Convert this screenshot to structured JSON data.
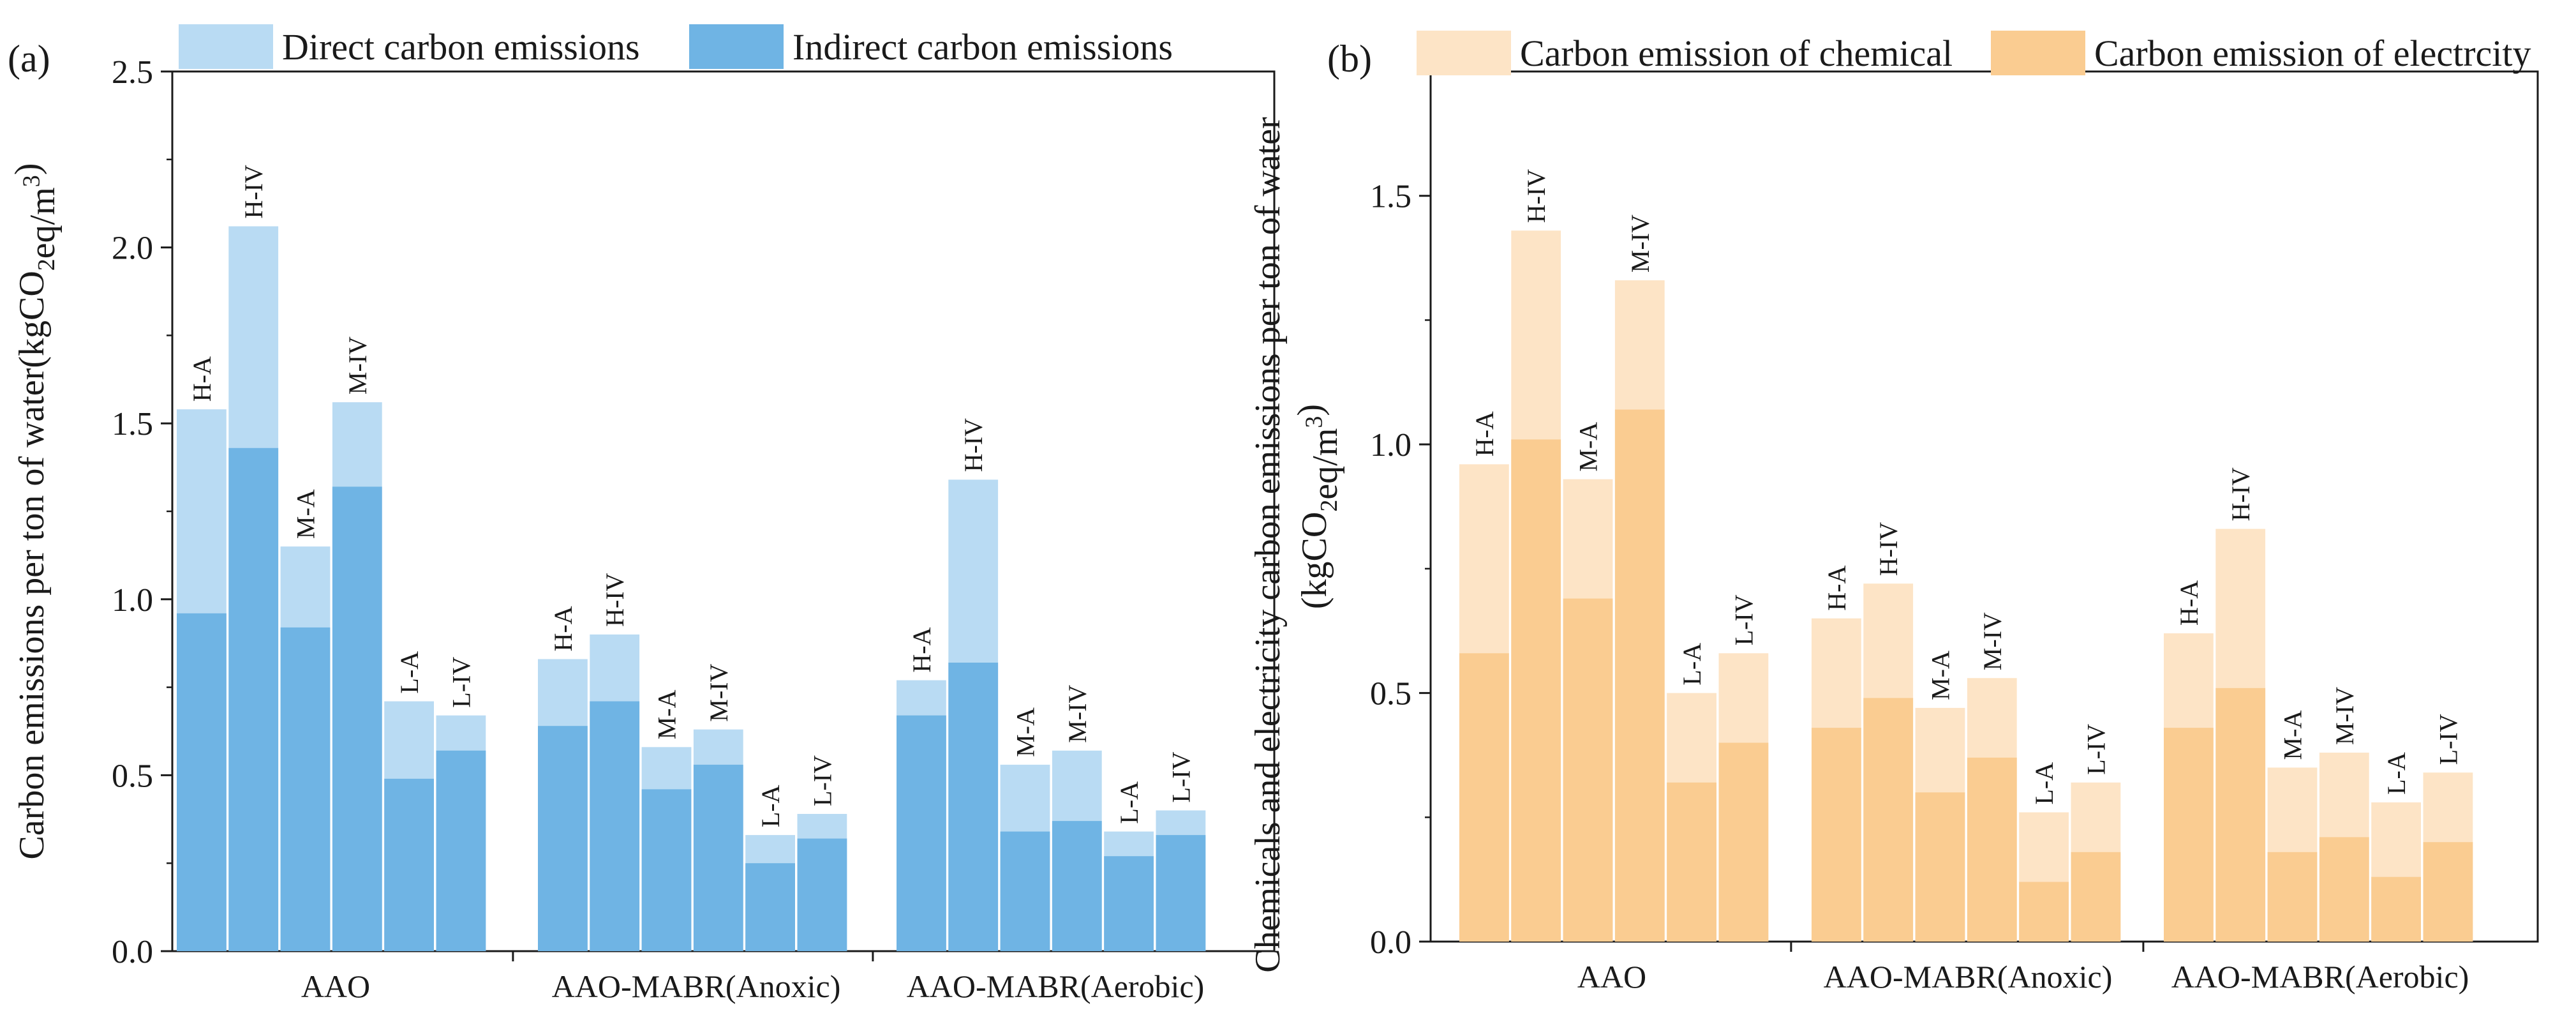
{
  "chart_data": [
    {
      "type": "bar",
      "stacked": "overlay",
      "panel_label": "(a)",
      "ylabel": "Carbon emissions per ton of water(kgCO2eq/m3)",
      "ylim": [
        0,
        2.5
      ],
      "yticks": [
        "0.0",
        "0.5",
        "1.0",
        "1.5",
        "2.0",
        "2.5"
      ],
      "groups": [
        "AAO",
        "AAO-MABR(Anoxic)",
        "AAO-MABR(Aerobic)"
      ],
      "categories": [
        "H-A",
        "H-IV",
        "M-A",
        "M-IV",
        "L-A",
        "L-IV"
      ],
      "legend": {
        "placement": "top",
        "entries": [
          "Direct carbon emissions",
          "Indirect carbon emissions"
        ]
      },
      "series": [
        {
          "name": "Direct carbon emissions",
          "color": "#b9dbf3",
          "values": [
            [
              1.54,
              2.06,
              1.15,
              1.56,
              0.71,
              0.67
            ],
            [
              0.83,
              0.9,
              0.58,
              0.63,
              0.33,
              0.39
            ],
            [
              0.77,
              1.34,
              0.53,
              0.57,
              0.34,
              0.4
            ]
          ]
        },
        {
          "name": "Indirect carbon emissions",
          "color": "#6fb4e4",
          "values": [
            [
              0.96,
              1.43,
              0.92,
              1.32,
              0.49,
              0.57
            ],
            [
              0.64,
              0.71,
              0.46,
              0.53,
              0.25,
              0.32
            ],
            [
              0.67,
              0.82,
              0.34,
              0.37,
              0.27,
              0.33
            ]
          ]
        }
      ]
    },
    {
      "type": "bar",
      "stacked": "overlay",
      "panel_label": "(b)",
      "ylabel": "Chemicals and electricity carbon emissions per ton of water (kgCO2eq/m3)",
      "ylim": [
        0,
        1.75
      ],
      "yticks": [
        "0.0",
        "0.5",
        "1.0",
        "1.5"
      ],
      "groups": [
        "AAO",
        "AAO-MABR(Anoxic)",
        "AAO-MABR(Aerobic)"
      ],
      "categories": [
        "H-A",
        "H-IV",
        "M-A",
        "M-IV",
        "L-A",
        "L-IV"
      ],
      "legend": {
        "placement": "top",
        "entries": [
          "Carbon emission of chemical",
          "Carbon emission of electrcity"
        ]
      },
      "series": [
        {
          "name": "Carbon emission of chemical",
          "color": "#fde4c6",
          "values": [
            [
              0.96,
              1.43,
              0.93,
              1.33,
              0.5,
              0.58
            ],
            [
              0.65,
              0.72,
              0.47,
              0.53,
              0.26,
              0.32
            ],
            [
              0.62,
              0.83,
              0.35,
              0.38,
              0.28,
              0.34
            ]
          ]
        },
        {
          "name": "Carbon emission of electrcity",
          "color": "#facc91",
          "values": [
            [
              0.58,
              1.01,
              0.69,
              1.07,
              0.32,
              0.4
            ],
            [
              0.43,
              0.49,
              0.3,
              0.37,
              0.12,
              0.18
            ],
            [
              0.43,
              0.51,
              0.18,
              0.21,
              0.13,
              0.2
            ]
          ]
        }
      ]
    }
  ]
}
